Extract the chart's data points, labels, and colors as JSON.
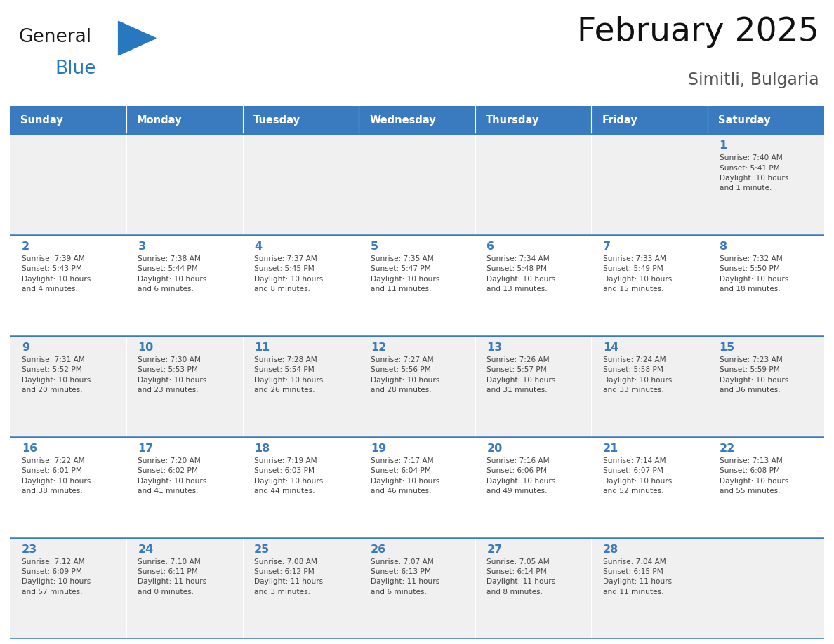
{
  "title": "February 2025",
  "subtitle": "Simitli, Bulgaria",
  "header_bg": "#3a7abf",
  "header_text_color": "#ffffff",
  "cell_bg_row0": "#f0f0f0",
  "cell_bg_row1": "#ffffff",
  "cell_bg_row2": "#f0f0f0",
  "cell_bg_row3": "#ffffff",
  "cell_bg_row4": "#f0f0f0",
  "day_number_color": "#3a7abf",
  "cell_text_color": "#444444",
  "border_color": "#3a7abf",
  "days_of_week": [
    "Sunday",
    "Monday",
    "Tuesday",
    "Wednesday",
    "Thursday",
    "Friday",
    "Saturday"
  ],
  "weeks": [
    [
      {
        "day": "",
        "info": ""
      },
      {
        "day": "",
        "info": ""
      },
      {
        "day": "",
        "info": ""
      },
      {
        "day": "",
        "info": ""
      },
      {
        "day": "",
        "info": ""
      },
      {
        "day": "",
        "info": ""
      },
      {
        "day": "1",
        "info": "Sunrise: 7:40 AM\nSunset: 5:41 PM\nDaylight: 10 hours\nand 1 minute."
      }
    ],
    [
      {
        "day": "2",
        "info": "Sunrise: 7:39 AM\nSunset: 5:43 PM\nDaylight: 10 hours\nand 4 minutes."
      },
      {
        "day": "3",
        "info": "Sunrise: 7:38 AM\nSunset: 5:44 PM\nDaylight: 10 hours\nand 6 minutes."
      },
      {
        "day": "4",
        "info": "Sunrise: 7:37 AM\nSunset: 5:45 PM\nDaylight: 10 hours\nand 8 minutes."
      },
      {
        "day": "5",
        "info": "Sunrise: 7:35 AM\nSunset: 5:47 PM\nDaylight: 10 hours\nand 11 minutes."
      },
      {
        "day": "6",
        "info": "Sunrise: 7:34 AM\nSunset: 5:48 PM\nDaylight: 10 hours\nand 13 minutes."
      },
      {
        "day": "7",
        "info": "Sunrise: 7:33 AM\nSunset: 5:49 PM\nDaylight: 10 hours\nand 15 minutes."
      },
      {
        "day": "8",
        "info": "Sunrise: 7:32 AM\nSunset: 5:50 PM\nDaylight: 10 hours\nand 18 minutes."
      }
    ],
    [
      {
        "day": "9",
        "info": "Sunrise: 7:31 AM\nSunset: 5:52 PM\nDaylight: 10 hours\nand 20 minutes."
      },
      {
        "day": "10",
        "info": "Sunrise: 7:30 AM\nSunset: 5:53 PM\nDaylight: 10 hours\nand 23 minutes."
      },
      {
        "day": "11",
        "info": "Sunrise: 7:28 AM\nSunset: 5:54 PM\nDaylight: 10 hours\nand 26 minutes."
      },
      {
        "day": "12",
        "info": "Sunrise: 7:27 AM\nSunset: 5:56 PM\nDaylight: 10 hours\nand 28 minutes."
      },
      {
        "day": "13",
        "info": "Sunrise: 7:26 AM\nSunset: 5:57 PM\nDaylight: 10 hours\nand 31 minutes."
      },
      {
        "day": "14",
        "info": "Sunrise: 7:24 AM\nSunset: 5:58 PM\nDaylight: 10 hours\nand 33 minutes."
      },
      {
        "day": "15",
        "info": "Sunrise: 7:23 AM\nSunset: 5:59 PM\nDaylight: 10 hours\nand 36 minutes."
      }
    ],
    [
      {
        "day": "16",
        "info": "Sunrise: 7:22 AM\nSunset: 6:01 PM\nDaylight: 10 hours\nand 38 minutes."
      },
      {
        "day": "17",
        "info": "Sunrise: 7:20 AM\nSunset: 6:02 PM\nDaylight: 10 hours\nand 41 minutes."
      },
      {
        "day": "18",
        "info": "Sunrise: 7:19 AM\nSunset: 6:03 PM\nDaylight: 10 hours\nand 44 minutes."
      },
      {
        "day": "19",
        "info": "Sunrise: 7:17 AM\nSunset: 6:04 PM\nDaylight: 10 hours\nand 46 minutes."
      },
      {
        "day": "20",
        "info": "Sunrise: 7:16 AM\nSunset: 6:06 PM\nDaylight: 10 hours\nand 49 minutes."
      },
      {
        "day": "21",
        "info": "Sunrise: 7:14 AM\nSunset: 6:07 PM\nDaylight: 10 hours\nand 52 minutes."
      },
      {
        "day": "22",
        "info": "Sunrise: 7:13 AM\nSunset: 6:08 PM\nDaylight: 10 hours\nand 55 minutes."
      }
    ],
    [
      {
        "day": "23",
        "info": "Sunrise: 7:12 AM\nSunset: 6:09 PM\nDaylight: 10 hours\nand 57 minutes."
      },
      {
        "day": "24",
        "info": "Sunrise: 7:10 AM\nSunset: 6:11 PM\nDaylight: 11 hours\nand 0 minutes."
      },
      {
        "day": "25",
        "info": "Sunrise: 7:08 AM\nSunset: 6:12 PM\nDaylight: 11 hours\nand 3 minutes."
      },
      {
        "day": "26",
        "info": "Sunrise: 7:07 AM\nSunset: 6:13 PM\nDaylight: 11 hours\nand 6 minutes."
      },
      {
        "day": "27",
        "info": "Sunrise: 7:05 AM\nSunset: 6:14 PM\nDaylight: 11 hours\nand 8 minutes."
      },
      {
        "day": "28",
        "info": "Sunrise: 7:04 AM\nSunset: 6:15 PM\nDaylight: 11 hours\nand 11 minutes."
      },
      {
        "day": "",
        "info": ""
      }
    ]
  ],
  "logo_general_color": "#1a1a1a",
  "logo_blue_color": "#2878c0",
  "logo_triangle_color": "#2878c0",
  "fig_width": 11.88,
  "fig_height": 9.18,
  "dpi": 100
}
